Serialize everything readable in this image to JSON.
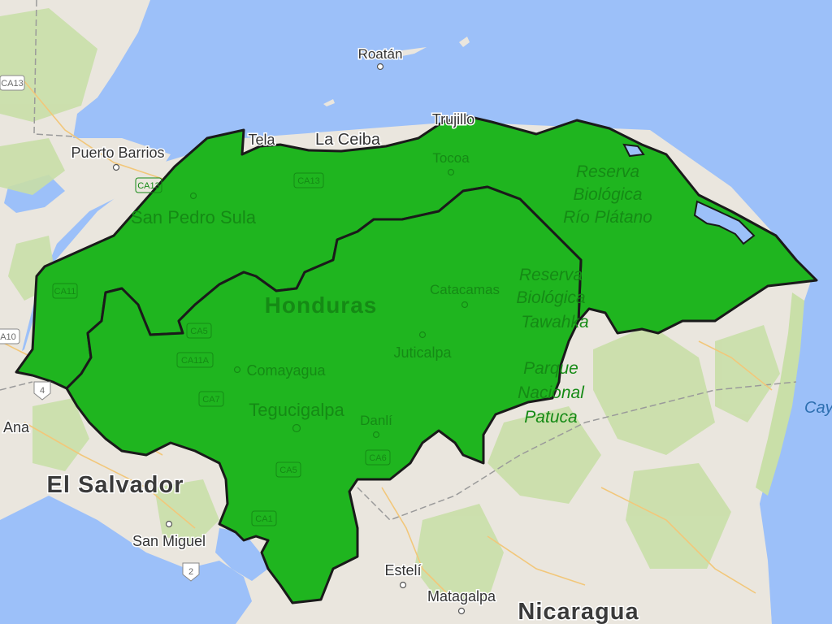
{
  "map": {
    "colors": {
      "water": "#9cc0f9",
      "land": "#eae6de",
      "forest": "#c9dfa8",
      "region_fill": "#1fb51f",
      "region_stroke": "#1a1a1a"
    },
    "cities": {
      "roatan": "Roatán",
      "tela": "Tela",
      "la_ceiba": "La Ceiba",
      "trujillo": "Trujillo",
      "puerto_barrios": "Puerto Barrios",
      "san_pedro_sula": "San Pedro Sula",
      "tocoa": "Tocoa",
      "catacamas": "Catacamas",
      "juticalpa": "Juticalpa",
      "comayagua": "Comayagua",
      "tegucigalpa": "Tegucigalpa",
      "danli": "Danlí",
      "ana": "Ana",
      "san_miguel": "San Miguel",
      "esteli": "Estelí",
      "matagalpa": "Matagalpa",
      "cay": "Cay"
    },
    "countries": {
      "honduras": "Honduras",
      "el_salvador": "El Salvador",
      "nicaragua": "Nicaragua"
    },
    "reserves": {
      "rio_platano": [
        "Reserva",
        "Biológica",
        "Río Plátano"
      ],
      "tawahka": [
        "Reserva",
        "Biológica",
        "Tawahka"
      ],
      "patuca": [
        "Parque",
        "Nacional",
        "Patuca"
      ]
    },
    "highways": {
      "ca13_a": "CA13",
      "ca13_b": "CA13",
      "ca13_c": "CA13",
      "ca11": "CA11",
      "ca10": "A10",
      "ca5_a": "CA5",
      "ca5_b": "CA5",
      "ca11a": "CA11A",
      "ca7": "CA7",
      "ca6": "CA6",
      "ca1": "CA1",
      "r4": "4",
      "r2": "2"
    }
  }
}
